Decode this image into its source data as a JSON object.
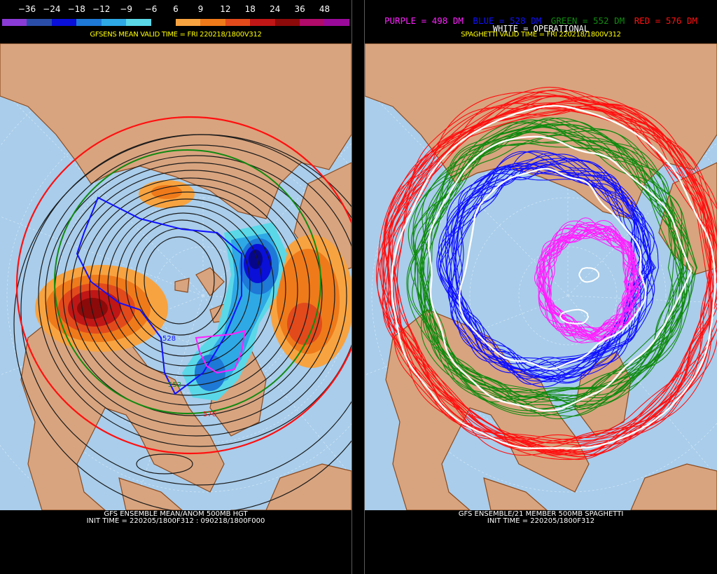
{
  "left": {
    "colorbar": {
      "labels": [
        "−36",
        "−24",
        "−18",
        "−12",
        "−9",
        "−6",
        "6",
        "9",
        "12",
        "18",
        "24",
        "36",
        "48"
      ],
      "colors": [
        "#8a3bd6",
        "#2a4ea8",
        "#0a10d8",
        "#1e78d6",
        "#2ea9e6",
        "#5ad8e8",
        "#000000",
        "#f7a340",
        "#ef7a1a",
        "#e24a1c",
        "#c01616",
        "#8c0a0a",
        "#b00a6a",
        "#9a0a9a"
      ]
    },
    "title": "GFSENS MEAN VALID TIME = FRI 220218/1800V312",
    "contour_labels": [
      "528",
      "552",
      "576"
    ],
    "footer_line1": "GFS ENSEMBLE MEAN/ANOM 500MB HGT",
    "footer_line2": "INIT TIME = 220205/1800F312 : 090218/1800F000"
  },
  "right": {
    "legend": {
      "purple": "PURPLE = 498 DM",
      "blue": "BLUE = 528 DM",
      "green": "GREEN = 552 DM",
      "red": "RED = 576 DM",
      "white": "WHITE = OPERATIONAL"
    },
    "title": "SPAGHETTI VALID TIME = FRI 220218/1800V312",
    "footer_line1": "GFS ENSEMBLE/21 MEMBER 500MB SPAGHETTI",
    "footer_line2": "INIT TIME = 220205/1800F312"
  },
  "colors": {
    "ocean": "#a9cdeb",
    "land": "#d8a47f",
    "coast": "#8b4a1e",
    "purple": "#ff20ff",
    "blue": "#1010ff",
    "green": "#108a10",
    "red": "#ff1010",
    "white": "#ffffff"
  }
}
